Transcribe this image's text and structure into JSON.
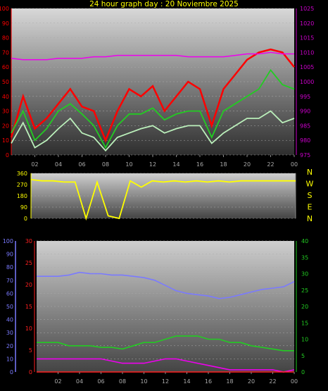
{
  "title": "24 hour graph day : 20 Noviembre 2025",
  "colors": {
    "frame_left": "#ff0000",
    "frame_right": "#cc00cc",
    "yellow": "#ffff00",
    "lightgreen": "#bbf0bb",
    "green": "#22cc22",
    "magenta": "#ee00ee",
    "blue": "#7a7aff",
    "red": "#ff2020"
  },
  "x_ticks": [
    "02",
    "04",
    "06",
    "08",
    "10",
    "12",
    "14",
    "16",
    "18",
    "20",
    "22",
    "00"
  ],
  "chart_data": [
    {
      "type": "line",
      "name": "wind-pressure",
      "ylim_left": [
        0,
        100
      ],
      "ylim_right": [
        975,
        1025
      ],
      "left_ticks": [
        "100",
        "90",
        "80",
        "70",
        "60",
        "50",
        "40",
        "30",
        "20",
        "10",
        "0"
      ],
      "right_ticks": [
        "1025",
        "1020",
        "1015",
        "1010",
        "1005",
        "1000",
        "995",
        "990",
        "985",
        "980",
        "975"
      ],
      "x_hours": [
        0,
        1,
        2,
        3,
        4,
        5,
        6,
        7,
        8,
        9,
        10,
        11,
        12,
        13,
        14,
        15,
        16,
        17,
        18,
        19,
        20,
        21,
        22,
        23,
        24
      ],
      "series": [
        {
          "key": "gust",
          "color": "#ff0000",
          "values": [
            12,
            40,
            18,
            25,
            35,
            45,
            33,
            30,
            10,
            30,
            45,
            40,
            47,
            30,
            40,
            50,
            45,
            20,
            45,
            55,
            65,
            70,
            72,
            70,
            60
          ]
        },
        {
          "key": "avg",
          "color": "#22cc22",
          "values": [
            15,
            30,
            10,
            18,
            30,
            35,
            28,
            20,
            5,
            20,
            28,
            28,
            32,
            24,
            28,
            30,
            30,
            12,
            30,
            35,
            40,
            45,
            58,
            48,
            45
          ]
        },
        {
          "key": "speed",
          "color": "#bbf0bb",
          "values": [
            8,
            22,
            5,
            10,
            18,
            25,
            15,
            12,
            3,
            12,
            15,
            18,
            20,
            15,
            18,
            20,
            20,
            8,
            15,
            20,
            25,
            25,
            30,
            22,
            25
          ]
        },
        {
          "key": "pressure",
          "color": "#ee00ee",
          "axis": "right",
          "values": [
            1008,
            1007.5,
            1007.5,
            1007.5,
            1008,
            1008,
            1008,
            1008.5,
            1008.5,
            1009,
            1009,
            1009,
            1009,
            1009,
            1009,
            1008.5,
            1008.5,
            1008.5,
            1008.5,
            1009,
            1009.5,
            1009.5,
            1010,
            1009.5,
            1009.5
          ]
        }
      ]
    },
    {
      "type": "line",
      "name": "wind-direction",
      "ylim": [
        0,
        360
      ],
      "ticks": [
        "360",
        "270",
        "180",
        "90",
        "0"
      ],
      "compass": [
        "N",
        "W",
        "S",
        "E",
        "N"
      ],
      "x_hours": [
        0,
        1,
        2,
        3,
        4,
        5,
        6,
        7,
        8,
        9,
        10,
        11,
        12,
        13,
        14,
        15,
        16,
        17,
        18,
        19,
        20,
        21,
        22,
        23,
        24
      ],
      "series": [
        {
          "key": "direction",
          "color": "#ffff00",
          "values": [
            310,
            300,
            300,
            290,
            290,
            0,
            290,
            20,
            0,
            300,
            250,
            300,
            290,
            300,
            290,
            300,
            290,
            300,
            290,
            300,
            300,
            300,
            300,
            300,
            300
          ]
        }
      ]
    },
    {
      "type": "line",
      "name": "temperature-humidity",
      "ylim_outer": [
        0,
        100
      ],
      "ylim_left": [
        0,
        30
      ],
      "ylim_right": [
        0,
        40
      ],
      "outer_ticks": [
        "100",
        "90",
        "80",
        "70",
        "60",
        "50",
        "40",
        "30",
        "20",
        "10",
        "0"
      ],
      "left_ticks": [
        "30",
        "25",
        "20",
        "15",
        "10",
        "5",
        "0"
      ],
      "right_ticks": [
        "40",
        "35",
        "30",
        "25",
        "20",
        "15",
        "10",
        "5",
        "0"
      ],
      "x_hours": [
        0,
        1,
        2,
        3,
        4,
        5,
        6,
        7,
        8,
        9,
        10,
        11,
        12,
        13,
        14,
        15,
        16,
        17,
        18,
        19,
        20,
        21,
        22,
        23,
        24
      ],
      "series": [
        {
          "key": "humidity",
          "color": "#7a7aff",
          "axis": "outer",
          "values": [
            73,
            73,
            73,
            74,
            76,
            75,
            75,
            74,
            74,
            73,
            72,
            70,
            66,
            62,
            60,
            59,
            58,
            56,
            57,
            59,
            61,
            63,
            64,
            65,
            69
          ]
        },
        {
          "key": "temperature",
          "color": "#22cc22",
          "axis": "right",
          "values": [
            9,
            9,
            9,
            8,
            8,
            8,
            7.5,
            7.5,
            7,
            8,
            9,
            9,
            10,
            11,
            11,
            11,
            10,
            10,
            9,
            9,
            8,
            7.5,
            7,
            6.5,
            6.5
          ]
        },
        {
          "key": "dewpoint",
          "color": "#ee00ee",
          "axis": "left",
          "values": [
            3,
            3,
            3,
            3,
            3,
            3,
            3,
            2.5,
            2,
            2,
            2,
            2.5,
            3,
            3,
            2.5,
            2,
            1.5,
            1,
            0.5,
            0.5,
            0.5,
            0.5,
            0.5,
            0,
            0.5
          ]
        },
        {
          "key": "rain",
          "color": "#ff2020",
          "axis": "left",
          "values": [
            0,
            0,
            0,
            0,
            0,
            0,
            0,
            0,
            0,
            0,
            0,
            0,
            0,
            0,
            0,
            0,
            0,
            0,
            0,
            0,
            0,
            0,
            0,
            0,
            0
          ]
        }
      ]
    }
  ]
}
